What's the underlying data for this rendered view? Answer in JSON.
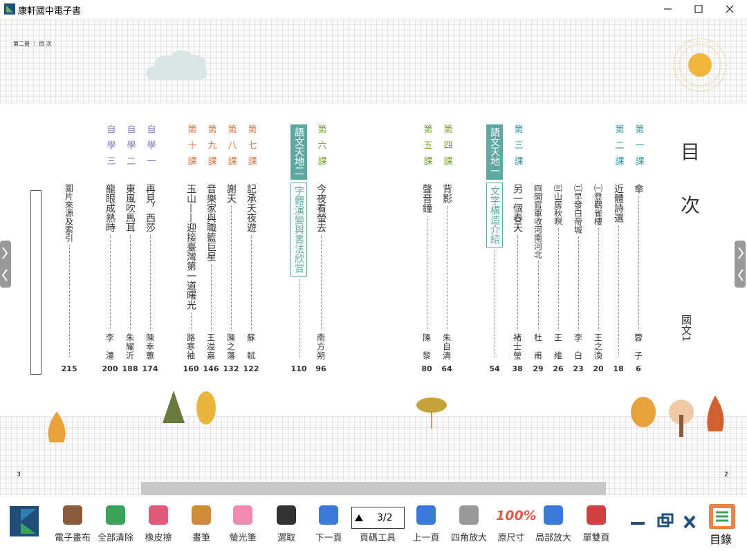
{
  "window": {
    "title": "康軒國中電子書"
  },
  "page": {
    "header": "第二冊 ｜ 目 次",
    "heading": "目 次",
    "subject": "國文1",
    "left_page_number": "3",
    "right_page_number": "2",
    "entries": [
      {
        "label": "第一課",
        "title": "傘",
        "author": "蓉子",
        "page": "6",
        "color": "#3e9a9c"
      },
      {
        "label": "第二課",
        "title": "近體詩選",
        "page": "18",
        "color": "#3e9a9c"
      },
      {
        "title": "㈠登鸛雀樓",
        "author": "王之渙",
        "page": "20",
        "color": "#3e9a9c"
      },
      {
        "title": "㈡早發白帝城",
        "author": "李白",
        "page": "23",
        "color": "#3e9a9c"
      },
      {
        "title": "㈢山居秋暝",
        "author": "王維",
        "page": "26",
        "color": "#3e9a9c"
      },
      {
        "title": "㈣聞官軍收河南河北",
        "author": "杜甫",
        "page": "29",
        "color": "#3e9a9c"
      },
      {
        "label": "第三課",
        "title": "另一個春天",
        "author": "褚士瑩",
        "page": "38",
        "color": "#3e9a9c"
      },
      {
        "label": "語文天地一",
        "title": "文字構造介紹",
        "page": "54",
        "color": "#5eaaa0",
        "box": true
      },
      {
        "label": "第四課",
        "title": "背影",
        "author": "朱自清",
        "page": "64",
        "color": "#7aa23a"
      },
      {
        "label": "第五課",
        "title": "聲音鐘",
        "author": "陳黎",
        "page": "80",
        "color": "#7aa23a"
      },
      {
        "label": "第六課",
        "title": "今夜看螢去",
        "author": "南方朔",
        "page": "96",
        "color": "#7aa23a"
      },
      {
        "label": "語文天地二",
        "title": "字體演變與書法欣賞",
        "page": "110",
        "color": "#5eaaa0",
        "box": true
      },
      {
        "label": "第七課",
        "title": "記承天夜遊",
        "author": "蘇軾",
        "page": "122",
        "color": "#e07a4a"
      },
      {
        "label": "第八課",
        "title": "謝天",
        "author": "陳之藩",
        "page": "132",
        "color": "#e07a4a"
      },
      {
        "label": "第九課",
        "title": "音樂家與職籃巨星",
        "author": "王溢嘉",
        "page": "146",
        "color": "#e07a4a"
      },
      {
        "label": "第十課",
        "title": "玉山——迎接臺灣第一道曙光",
        "author": "路寒袖",
        "page": "160",
        "color": "#e07a4a"
      },
      {
        "label": "自學一",
        "title": "再見，西莎",
        "author": "陳幸蕙",
        "page": "174",
        "color": "#7a7ab8"
      },
      {
        "label": "自學二",
        "title": "東風吹馬耳",
        "author": "朱耀沂",
        "page": "188",
        "color": "#7a7ab8"
      },
      {
        "label": "自學三",
        "title": "龍眼成熟時",
        "author": "李潼",
        "page": "200",
        "color": "#7a7ab8"
      },
      {
        "title": "圖片來源及索引",
        "page": "215",
        "color": "#333333"
      }
    ]
  },
  "toolbar": {
    "page_indicator": "3/2",
    "original_size_icon": "100%",
    "toc": "目錄",
    "tools": [
      "電子畫布",
      "全部清除",
      "橡皮擦",
      "畫筆",
      "螢光筆",
      "選取",
      "下一頁",
      "頁碼工具",
      "上一頁",
      "四角放大",
      "原尺寸",
      "局部放大",
      "單雙頁"
    ]
  }
}
